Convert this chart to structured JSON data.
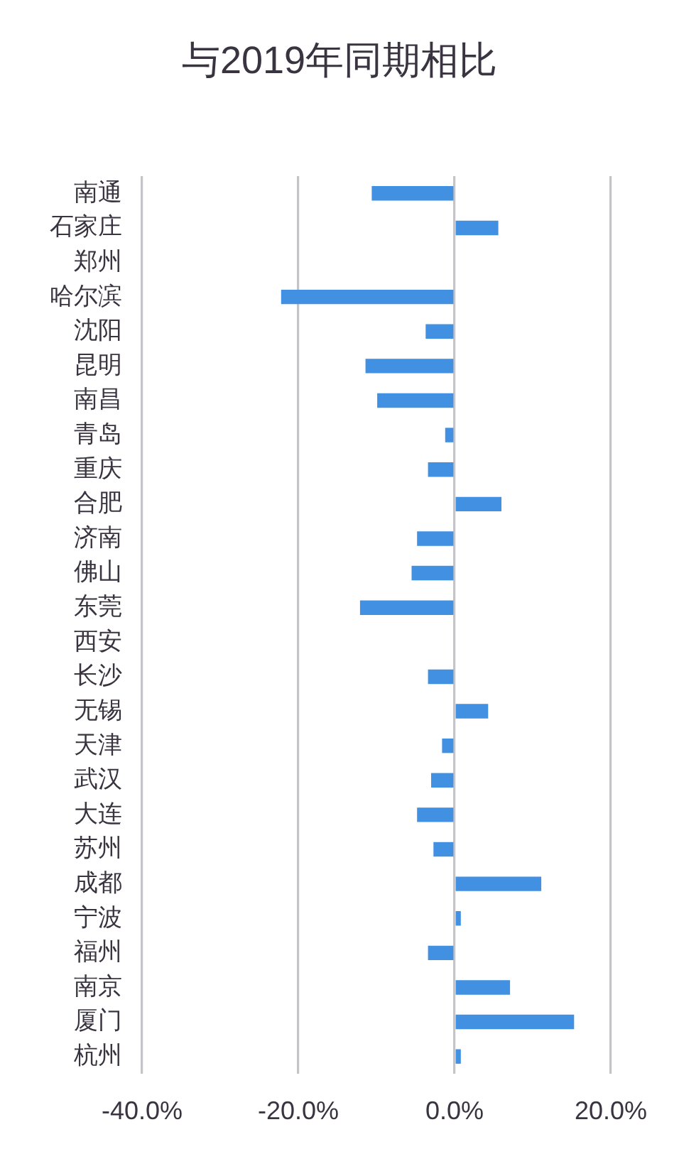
{
  "chart_data": {
    "type": "bar",
    "orientation": "horizontal",
    "title": "与2019年同期相比",
    "categories": [
      "南通",
      "石家庄",
      "郑州",
      "哈尔滨",
      "沈阳",
      "昆明",
      "南昌",
      "青岛",
      "重庆",
      "合肥",
      "济南",
      "佛山",
      "东莞",
      "西安",
      "长沙",
      "无锡",
      "天津",
      "武汉",
      "大连",
      "苏州",
      "成都",
      "宁波",
      "福州",
      "南京",
      "厦门",
      "杭州"
    ],
    "values": [
      -10.6,
      5.6,
      null,
      -22.2,
      -3.7,
      -11.4,
      -9.9,
      -1.2,
      -3.4,
      6.0,
      -4.8,
      -5.5,
      -12.1,
      null,
      -3.4,
      4.3,
      -1.6,
      -3.0,
      -4.8,
      -2.7,
      11.1,
      0.8,
      -3.4,
      7.1,
      15.3,
      0.8
    ],
    "color": "#4190e2",
    "xlim": [
      -40,
      20
    ],
    "xticks": [
      {
        "value": -40,
        "label": "-40.0%"
      },
      {
        "value": -20,
        "label": "-20.0%"
      },
      {
        "value": 0,
        "label": "0.0%"
      },
      {
        "value": 20,
        "label": "20.0%"
      }
    ],
    "grid": "x"
  }
}
